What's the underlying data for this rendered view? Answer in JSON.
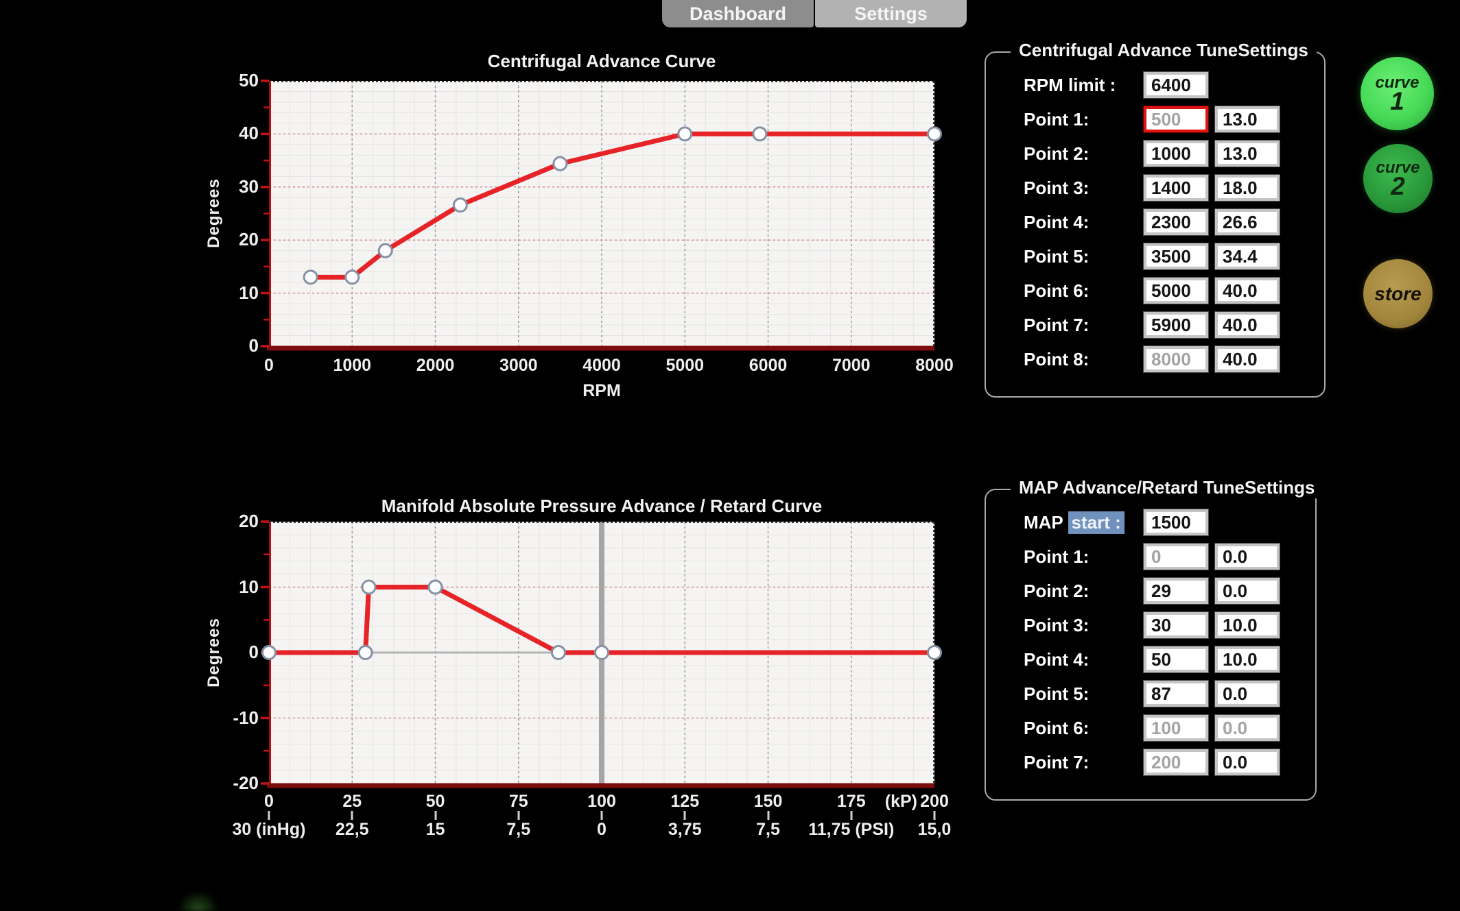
{
  "tabs": [
    {
      "label": "Dashboard",
      "active": false
    },
    {
      "label": "Settings",
      "active": true
    }
  ],
  "chart_data": [
    {
      "type": "line",
      "title": "Centrifugal Advance Curve",
      "xlabel": "RPM",
      "ylabel": "Degrees",
      "xlim": [
        0,
        8000
      ],
      "ylim": [
        0,
        50
      ],
      "x_ticks": [
        0,
        1000,
        2000,
        3000,
        4000,
        5000,
        6000,
        7000,
        8000
      ],
      "y_ticks": [
        0,
        10,
        20,
        30,
        40,
        50
      ],
      "x_minor_step": 250,
      "y_minor_step": 2,
      "grid": true,
      "line_color": "#e62428",
      "points": [
        [
          500,
          13
        ],
        [
          1000,
          13
        ],
        [
          1400,
          18
        ],
        [
          2300,
          26.6
        ],
        [
          3500,
          34.4
        ],
        [
          5000,
          40
        ],
        [
          5900,
          40
        ],
        [
          8000,
          40
        ]
      ]
    },
    {
      "type": "line",
      "title": "Manifold Absolute Pressure Advance / Retard Curve",
      "xlabel": "(kP)",
      "ylabel": "Degrees",
      "xlim": [
        0,
        200
      ],
      "ylim": [
        -20,
        20
      ],
      "x_ticks": [
        0,
        25,
        50,
        75,
        100,
        125,
        150,
        175,
        200
      ],
      "y_ticks": [
        -20,
        -10,
        0,
        10,
        20
      ],
      "x_minor_step": 6.25,
      "y_minor_step": 2,
      "grid": true,
      "line_color": "#e62428",
      "secondary_x_labels": [
        "30 (inHg)",
        "22,5",
        "15",
        "7,5",
        "0",
        "3,75",
        "7,5",
        "11,75 (PSI)",
        "15,0"
      ],
      "zero_line": true,
      "vline_x": 100,
      "points": [
        [
          0,
          0
        ],
        [
          29,
          0
        ],
        [
          30,
          10
        ],
        [
          50,
          10
        ],
        [
          87,
          0
        ],
        [
          100,
          0
        ],
        [
          200,
          0
        ]
      ]
    }
  ],
  "panels": [
    {
      "title": "Centrifugal Advance TuneSettings",
      "rows": [
        {
          "label": "RPM limit :",
          "fields": [
            {
              "value": "6400"
            }
          ]
        },
        {
          "label": "Point 1:",
          "fields": [
            {
              "value": "500",
              "disabled": true,
              "focused": true
            },
            {
              "value": "13.0"
            }
          ]
        },
        {
          "label": "Point 2:",
          "fields": [
            {
              "value": "1000"
            },
            {
              "value": "13.0"
            }
          ]
        },
        {
          "label": "Point 3:",
          "fields": [
            {
              "value": "1400"
            },
            {
              "value": "18.0"
            }
          ]
        },
        {
          "label": "Point 4:",
          "fields": [
            {
              "value": "2300"
            },
            {
              "value": "26.6"
            }
          ]
        },
        {
          "label": "Point 5:",
          "fields": [
            {
              "value": "3500"
            },
            {
              "value": "34.4"
            }
          ]
        },
        {
          "label": "Point 6:",
          "fields": [
            {
              "value": "5000"
            },
            {
              "value": "40.0"
            }
          ]
        },
        {
          "label": "Point 7:",
          "fields": [
            {
              "value": "5900"
            },
            {
              "value": "40.0"
            }
          ]
        },
        {
          "label": "Point 8:",
          "fields": [
            {
              "value": "8000",
              "disabled": true
            },
            {
              "value": "40.0"
            }
          ]
        }
      ]
    },
    {
      "title": "MAP Advance/Retard TuneSettings",
      "rows": [
        {
          "label": "MAP ",
          "label_selected": "start :",
          "fields": [
            {
              "value": "1500"
            }
          ]
        },
        {
          "label": "Point 1:",
          "fields": [
            {
              "value": "0",
              "disabled": true
            },
            {
              "value": "0.0"
            }
          ]
        },
        {
          "label": "Point 2:",
          "fields": [
            {
              "value": "29"
            },
            {
              "value": "0.0"
            }
          ]
        },
        {
          "label": "Point 3:",
          "fields": [
            {
              "value": "30"
            },
            {
              "value": "10.0"
            }
          ]
        },
        {
          "label": "Point 4:",
          "fields": [
            {
              "value": "50"
            },
            {
              "value": "10.0"
            }
          ]
        },
        {
          "label": "Point 5:",
          "fields": [
            {
              "value": "87"
            },
            {
              "value": "0.0"
            }
          ]
        },
        {
          "label": "Point 6:",
          "fields": [
            {
              "value": "100",
              "disabled": true
            },
            {
              "value": "0.0",
              "disabled": true
            }
          ]
        },
        {
          "label": "Point 7:",
          "fields": [
            {
              "value": "200",
              "disabled": true
            },
            {
              "value": "0.0"
            }
          ]
        }
      ]
    }
  ],
  "buttons": [
    {
      "label": "curve",
      "number": "1"
    },
    {
      "label": "curve",
      "number": "2"
    },
    {
      "label": "store"
    }
  ],
  "colors": {
    "background": "#000000",
    "plot_background": "#f5f4f2",
    "curve_red": "#e62428",
    "marker_stroke": "#8591a4",
    "axis_red": "#aa1111",
    "focus_border": "#e01414",
    "selection_blue": "#7191bd",
    "tab_active": "#b2b2b2",
    "tab_inactive": "#8d8d8d",
    "curve1_green": "#47da57",
    "curve2_green": "#289739",
    "store_gold": "#a1863c"
  }
}
